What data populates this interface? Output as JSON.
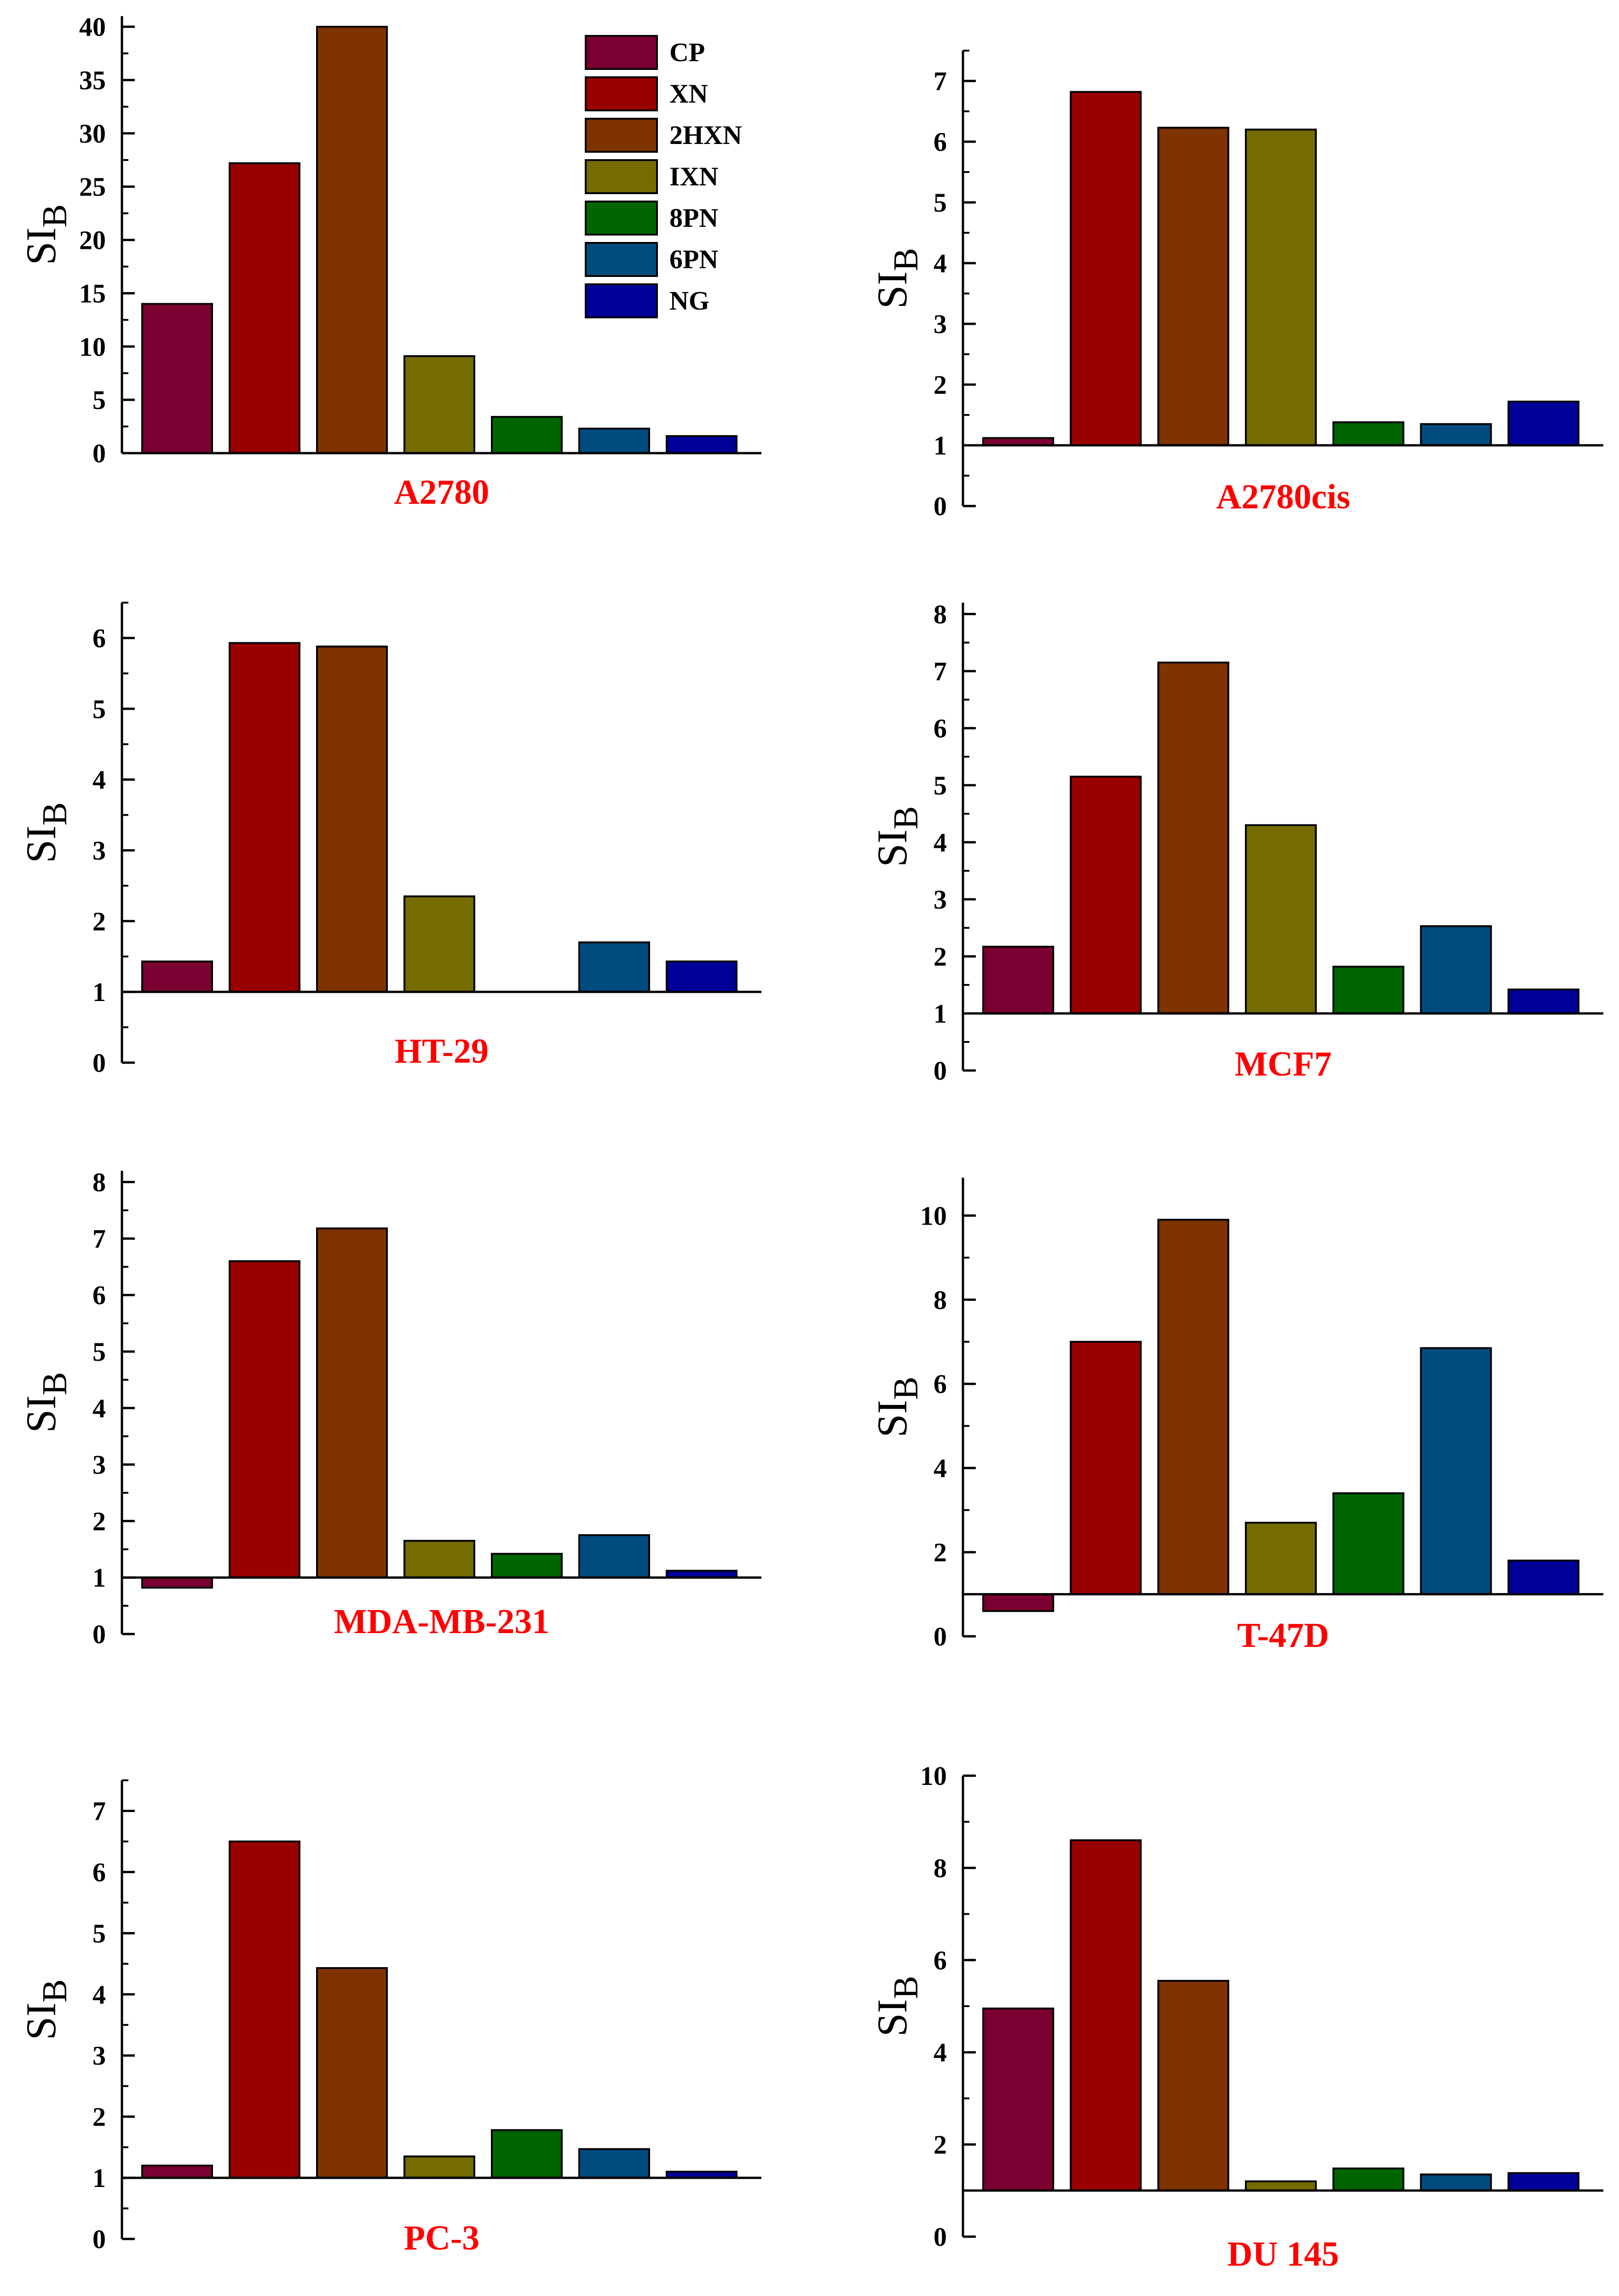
{
  "legend": {
    "entries": [
      {
        "label": "CP",
        "color": "#7a0032"
      },
      {
        "label": "XN",
        "color": "#990000"
      },
      {
        "label": "2HXN",
        "color": "#7f3300"
      },
      {
        "label": "IXN",
        "color": "#756b00"
      },
      {
        "label": "8PN",
        "color": "#006400"
      },
      {
        "label": "6PN",
        "color": "#004c7f"
      },
      {
        "label": "NG",
        "color": "#000099"
      }
    ]
  },
  "chart_data": [
    {
      "type": "bar",
      "title": "A2780",
      "ylabel": "SI",
      "ylabel_sub": "B",
      "categories": [
        "CP",
        "XN",
        "2HXN",
        "IXN",
        "8PN",
        "6PN",
        "NG"
      ],
      "values": [
        14,
        27.2,
        40,
        9.1,
        3.4,
        2.3,
        1.6
      ],
      "baseline": 0,
      "ylim": [
        0,
        41
      ],
      "yticks": [
        0,
        5,
        10,
        15,
        20,
        25,
        30,
        35,
        40
      ],
      "title_color": "#ff0000"
    },
    {
      "type": "bar",
      "title": "A2780cis",
      "ylabel": "SI",
      "ylabel_sub": "B",
      "categories": [
        "CP",
        "XN",
        "2HXN",
        "IXN",
        "8PN",
        "6PN",
        "NG"
      ],
      "values": [
        1.12,
        6.82,
        6.23,
        6.2,
        1.38,
        1.35,
        1.72
      ],
      "baseline": 1,
      "ylim": [
        0,
        7.5
      ],
      "yticks": [
        0,
        1,
        2,
        3,
        4,
        5,
        6,
        7
      ],
      "title_color": "#ff0000"
    },
    {
      "type": "bar",
      "title": "HT-29",
      "ylabel": "SI",
      "ylabel_sub": "B",
      "categories": [
        "CP",
        "XN",
        "2HXN",
        "IXN",
        "8PN",
        "6PN",
        "NG"
      ],
      "values": [
        1.43,
        5.93,
        5.88,
        2.35,
        null,
        1.7,
        1.43
      ],
      "baseline": 1,
      "ylim": [
        0,
        6.5
      ],
      "yticks": [
        0,
        1,
        2,
        3,
        4,
        5,
        6
      ],
      "title_color": "#ff0000"
    },
    {
      "type": "bar",
      "title": "MCF7",
      "ylabel": "SI",
      "ylabel_sub": "B",
      "categories": [
        "CP",
        "XN",
        "2HXN",
        "IXN",
        "8PN",
        "6PN",
        "NG"
      ],
      "values": [
        2.17,
        5.15,
        7.15,
        4.3,
        1.82,
        2.53,
        1.42
      ],
      "baseline": 1,
      "ylim": [
        0,
        8.2
      ],
      "yticks": [
        0,
        1,
        2,
        3,
        4,
        5,
        6,
        7,
        8
      ],
      "title_color": "#ff0000"
    },
    {
      "type": "bar",
      "title": "MDA-MB-231",
      "ylabel": "SI",
      "ylabel_sub": "B",
      "categories": [
        "CP",
        "XN",
        "2HXN",
        "IXN",
        "8PN",
        "6PN",
        "NG"
      ],
      "values": [
        0.82,
        6.6,
        7.18,
        1.65,
        1.42,
        1.75,
        1.12
      ],
      "baseline": 1,
      "ylim": [
        0,
        8.2
      ],
      "yticks": [
        0,
        1,
        2,
        3,
        4,
        5,
        6,
        7,
        8
      ],
      "title_color": "#ff0000"
    },
    {
      "type": "bar",
      "title": "T-47D",
      "ylabel": "SI",
      "ylabel_sub": "B",
      "categories": [
        "CP",
        "XN",
        "2HXN",
        "IXN",
        "8PN",
        "6PN",
        "NG"
      ],
      "values": [
        0.6,
        7,
        9.9,
        2.7,
        3.4,
        6.85,
        1.8
      ],
      "baseline": 1,
      "ylim": [
        0,
        10.9
      ],
      "yticks": [
        0,
        2,
        4,
        6,
        8,
        10
      ],
      "title_color": "#ff0000"
    },
    {
      "type": "bar",
      "title": "PC-3",
      "ylabel": "SI",
      "ylabel_sub": "B",
      "categories": [
        "CP",
        "XN",
        "2HXN",
        "IXN",
        "8PN",
        "6PN",
        "NG"
      ],
      "values": [
        1.2,
        6.5,
        4.43,
        1.35,
        1.78,
        1.47,
        1.1
      ],
      "baseline": 1,
      "ylim": [
        0,
        7.5
      ],
      "yticks": [
        0,
        1,
        2,
        3,
        4,
        5,
        6,
        7
      ],
      "title_color": "#ff0000"
    },
    {
      "type": "bar",
      "title": "DU 145",
      "ylabel": "SI",
      "ylabel_sub": "B",
      "categories": [
        "CP",
        "XN",
        "2HXN",
        "IXN",
        "8PN",
        "6PN",
        "NG"
      ],
      "values": [
        4.95,
        8.6,
        5.55,
        1.2,
        1.48,
        1.35,
        1.38
      ],
      "baseline": 1,
      "ylim": [
        0,
        10
      ],
      "yticks": [
        0,
        2,
        4,
        6,
        8,
        10
      ],
      "title_color": "#ff0000"
    }
  ]
}
